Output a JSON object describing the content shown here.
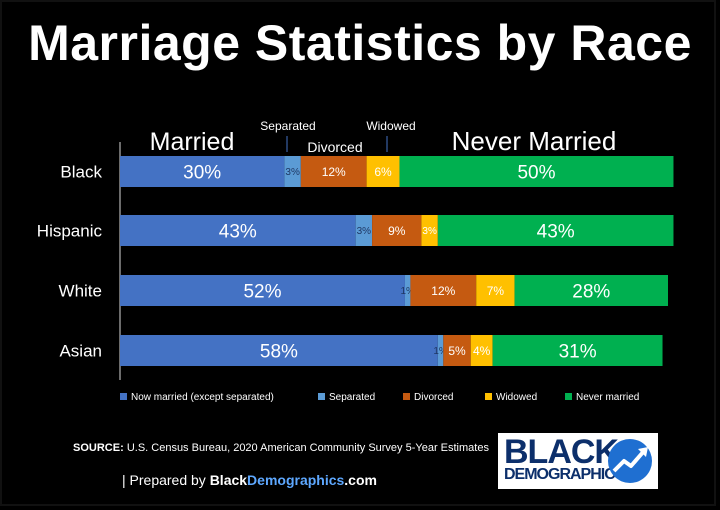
{
  "title": "Marriage Statistics by Race",
  "colors": {
    "married": "#4472c4",
    "separated": "#5b9bd5",
    "divorced": "#c55a11",
    "widowed": "#ffc000",
    "never_married": "#00b050",
    "background": "#000000"
  },
  "chart_data": {
    "type": "bar",
    "orientation": "horizontal",
    "stacked": true,
    "categories": [
      "Black",
      "Hispanic",
      "White",
      "Asian"
    ],
    "series": [
      {
        "name": "Now married (except separated)",
        "values": [
          30,
          43,
          52,
          58
        ],
        "labels": [
          "30%",
          "43%",
          "52%",
          "58%"
        ]
      },
      {
        "name": "Separated",
        "values": [
          3,
          3,
          1,
          1
        ],
        "labels": [
          "3%",
          "3%",
          "1%",
          "1%"
        ]
      },
      {
        "name": "Divorced",
        "values": [
          12,
          9,
          12,
          5
        ],
        "labels": [
          "12%",
          "9%",
          "12%",
          "5%"
        ]
      },
      {
        "name": "Widowed",
        "values": [
          6,
          3,
          7,
          4
        ],
        "labels": [
          "6%",
          "3%",
          "7%",
          "4%"
        ]
      },
      {
        "name": "Never married",
        "values": [
          50,
          43,
          28,
          31
        ],
        "labels": [
          "50%",
          "43%",
          "28%",
          "31%"
        ]
      }
    ],
    "xlim": [
      0,
      100
    ],
    "grid": false,
    "legend_position": "bottom",
    "annotations": [
      "Married",
      "Separated",
      "Divorced",
      "Widowed",
      "Never Married"
    ]
  },
  "source": {
    "label": "SOURCE:",
    "text": "U.S. Census Bureau, 2020 American Community Survey 5-Year Estimates"
  },
  "prepared": {
    "prefix": "| Prepared by ",
    "site_a": "Black",
    "site_b": "Demographics",
    "site_c": ".com"
  },
  "logo": {
    "word1": "BLACK",
    "word2": "DEMOGRAPHICS"
  }
}
